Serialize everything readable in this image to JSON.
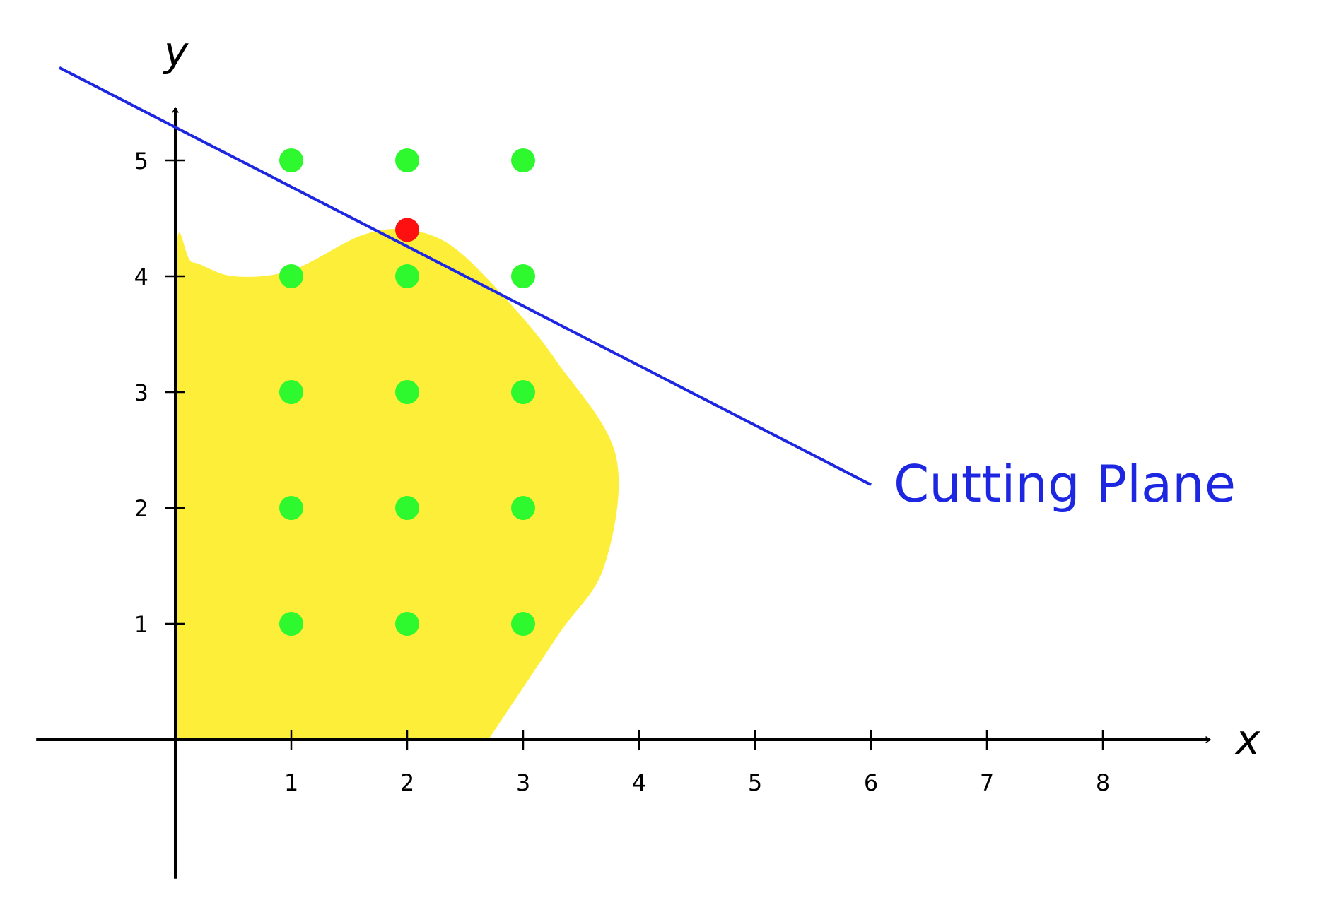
{
  "chart_data": {
    "type": "scatter",
    "title": "",
    "xlabel": "x",
    "ylabel": "y",
    "x_ticks": [
      "1",
      "2",
      "3",
      "4",
      "5",
      "6",
      "7",
      "8"
    ],
    "y_ticks": [
      "1",
      "2",
      "3",
      "4",
      "5"
    ],
    "xlim": [
      -1.2,
      9.0
    ],
    "ylim": [
      -1.2,
      5.5
    ],
    "grid": false,
    "integer_points": [
      {
        "x": 1,
        "y": 1
      },
      {
        "x": 2,
        "y": 1
      },
      {
        "x": 3,
        "y": 1
      },
      {
        "x": 1,
        "y": 2
      },
      {
        "x": 2,
        "y": 2
      },
      {
        "x": 3,
        "y": 2
      },
      {
        "x": 1,
        "y": 3
      },
      {
        "x": 2,
        "y": 3
      },
      {
        "x": 3,
        "y": 3
      },
      {
        "x": 1,
        "y": 4
      },
      {
        "x": 2,
        "y": 4
      },
      {
        "x": 3,
        "y": 4
      },
      {
        "x": 1,
        "y": 5
      },
      {
        "x": 2,
        "y": 5
      },
      {
        "x": 3,
        "y": 5
      }
    ],
    "lp_optimum_point": {
      "x": 2,
      "y": 4.4
    },
    "feasible_region_boundary": [
      [
        0,
        0
      ],
      [
        0,
        4.05
      ],
      [
        0.15,
        4.12
      ],
      [
        0.5,
        4.0
      ],
      [
        1.0,
        4.05
      ],
      [
        1.6,
        4.35
      ],
      [
        2.0,
        4.4
      ],
      [
        2.4,
        4.25
      ],
      [
        2.9,
        3.75
      ],
      [
        3.3,
        3.25
      ],
      [
        3.8,
        2.45
      ],
      [
        3.7,
        1.5
      ],
      [
        3.3,
        0.9
      ],
      [
        2.7,
        0
      ]
    ],
    "cutting_plane": {
      "label": "Cutting Plane",
      "from": {
        "x": -1.0,
        "y": 5.8
      },
      "to": {
        "x": 6.0,
        "y": 2.2
      }
    },
    "colors": {
      "feasible_region": "#fdee3a",
      "integer_point": "#2ef82e",
      "optimum_point": "#ff1010",
      "cutting_plane": "#1d26e0",
      "axes": "#000000"
    }
  }
}
